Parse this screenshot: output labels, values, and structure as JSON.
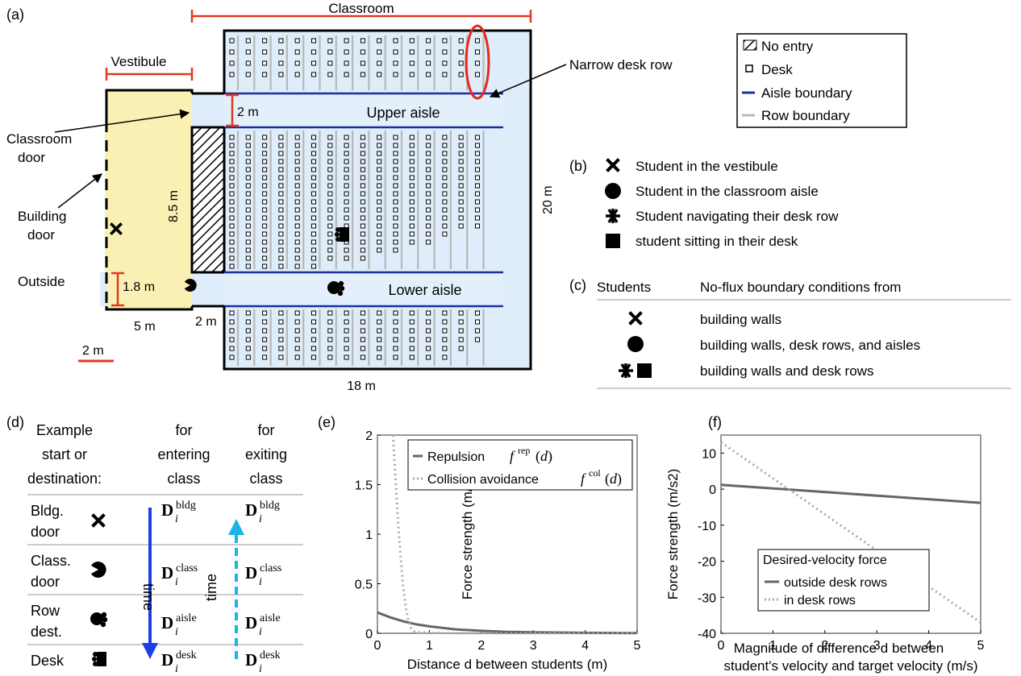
{
  "colors": {
    "vestibule": "#fbf0b4",
    "classroom": "#deedf9",
    "aisle_boundary": "#1a2fa0",
    "row_boundary": "#b8b8b8",
    "dimension": "#e03a1f",
    "highlight": "#e8281c",
    "time_entering": "#1f3fe6",
    "time_exiting": "#19b5e6",
    "curve_solid": "#666666",
    "curve_dotted": "#aaaaaa"
  },
  "panel_a": {
    "label": "(a)",
    "classroom": "Classroom",
    "vestibule": "Vestibule",
    "narrow_row": "Narrow desk row",
    "classroom_door_1": "Classroom",
    "classroom_door_2": "door",
    "building_door_1": "Building",
    "building_door_2": "door",
    "outside": "Outside",
    "upper_aisle": "Upper aisle",
    "lower_aisle": "Lower aisle",
    "dim_2m_upper": "2 m",
    "dim_8_5m": "8.5 m",
    "dim_20m": "20 m",
    "dim_1_8m": "1.8 m",
    "dim_5m": "5 m",
    "dim_2m_door": "2 m",
    "dim_18m": "18 m",
    "scale": "2 m",
    "legend": [
      "No entry",
      "Desk",
      "Aisle boundary",
      "Row boundary"
    ]
  },
  "panel_b": {
    "label": "(b)",
    "items": [
      {
        "icon": "cross-icon",
        "text": "Student in the vestibule"
      },
      {
        "icon": "circle-icon",
        "text": "Student in the classroom aisle"
      },
      {
        "icon": "asterisk-icon",
        "text": "Student navigating their desk row"
      },
      {
        "icon": "square-icon",
        "text": "student sitting in their desk"
      }
    ]
  },
  "panel_c": {
    "label": "(c)",
    "col1": "Students",
    "col2": "No-flux boundary conditions from",
    "rows": [
      "building walls",
      "building walls, desk rows, and aisles",
      "building walls and desk rows"
    ]
  },
  "panel_d": {
    "label": "(d)",
    "head1": [
      "Example",
      "start or",
      "destination:"
    ],
    "head2": [
      "for",
      "entering",
      "class"
    ],
    "head3": [
      "for",
      "exiting",
      "class"
    ],
    "rows": [
      {
        "l1": "Bldg.",
        "l2": "door",
        "sup": "bldg"
      },
      {
        "l1": "Class.",
        "l2": "door",
        "sup": "class"
      },
      {
        "l1": "Row",
        "l2": "dest.",
        "sup": "aisle"
      },
      {
        "l1": "Desk",
        "l2": "",
        "sup": "desk"
      }
    ],
    "time": "time",
    "symbol": "D",
    "subscript": "i"
  },
  "panel_e": {
    "label": "(e)",
    "ylabel": "Force strength (m/s2)",
    "xlabel": "Distance d between students (m)",
    "legend": [
      "Repulsion",
      "Collision avoidance"
    ],
    "legend_math": [
      "rep",
      "col"
    ]
  },
  "panel_f": {
    "label": "(f)",
    "ylabel": "Force strength (m/s2)",
    "xlabel1": "Magnitude of difference d between",
    "xlabel2": "student's velocity and target velocity (m/s)",
    "legend_title": "Desired-velocity force",
    "legend": [
      "outside desk rows",
      "in desk rows"
    ]
  },
  "chart_data": [
    {
      "type": "line",
      "xlim": [
        0,
        5
      ],
      "ylim": [
        0,
        2
      ],
      "xticks": [
        "0",
        "1",
        "2",
        "3",
        "4",
        "5"
      ],
      "yticks": [
        "0",
        "0.5",
        "1",
        "1.5",
        "2"
      ],
      "series": [
        {
          "name": "Repulsion",
          "style": "solid",
          "x": [
            0,
            0.25,
            0.5,
            0.75,
            1,
            1.5,
            2,
            2.5,
            3,
            4,
            5
          ],
          "values": [
            0.21,
            0.16,
            0.12,
            0.09,
            0.07,
            0.04,
            0.025,
            0.015,
            0.01,
            0.005,
            0.002
          ]
        },
        {
          "name": "Collision avoidance",
          "style": "dotted",
          "x": [
            0.3,
            0.35,
            0.4,
            0.45,
            0.5,
            0.55,
            0.6,
            0.65,
            0.7,
            0.8,
            1,
            2,
            5
          ],
          "values": [
            2.0,
            1.55,
            1.1,
            0.75,
            0.45,
            0.25,
            0.12,
            0.05,
            0.02,
            0.01,
            0.005,
            0.0,
            0.0
          ]
        }
      ]
    },
    {
      "type": "line",
      "xlim": [
        0,
        5
      ],
      "ylim": [
        -40,
        15
      ],
      "xticks": [
        "0",
        "1",
        "2",
        "3",
        "4",
        "5"
      ],
      "yticks": [
        "10",
        "0",
        "-10",
        "-20",
        "-30",
        "-40"
      ],
      "ytick_values": [
        10,
        0,
        -10,
        -20,
        -30,
        -40
      ],
      "series": [
        {
          "name": "outside desk rows",
          "style": "solid",
          "x": [
            0,
            5
          ],
          "values": [
            1.2,
            -3.8
          ]
        },
        {
          "name": "in desk rows",
          "style": "dotted",
          "x": [
            0,
            5
          ],
          "values": [
            13,
            -37
          ]
        }
      ]
    }
  ]
}
